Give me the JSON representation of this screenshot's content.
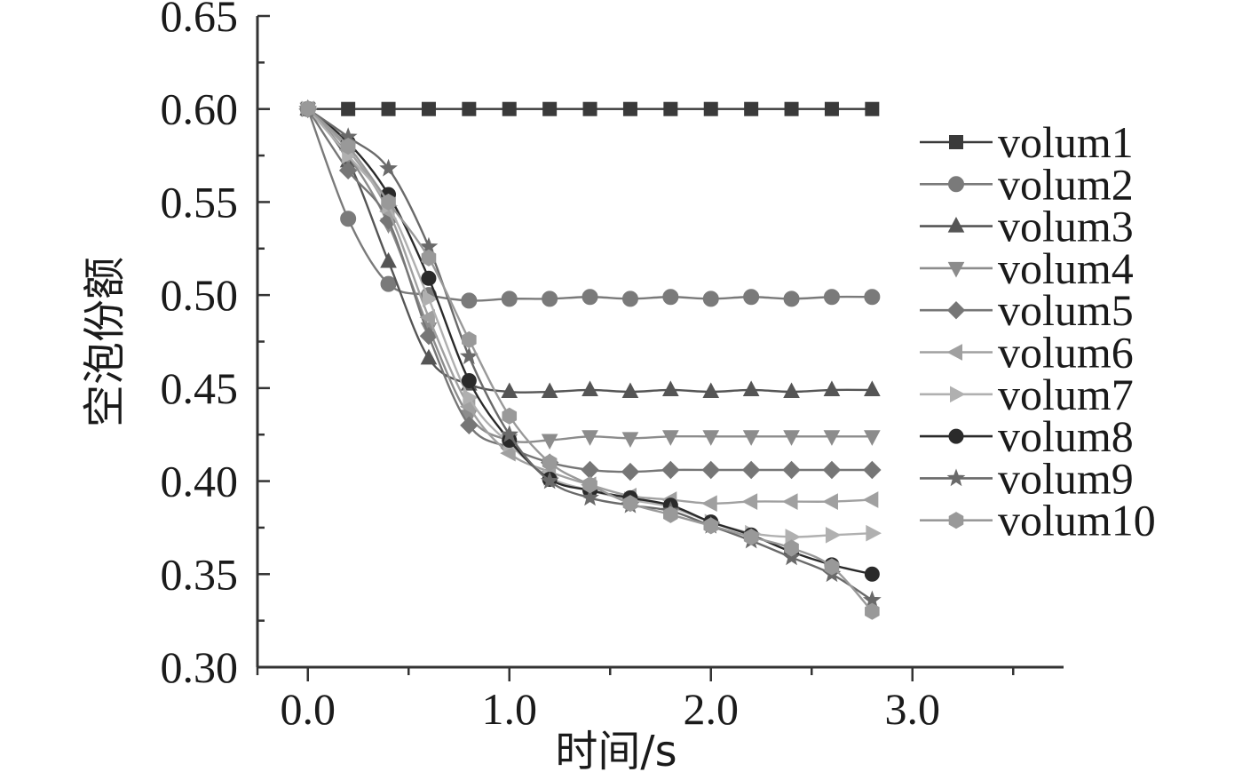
{
  "chart_data": {
    "type": "line",
    "title": "",
    "xlabel": "时间/s",
    "ylabel": "空泡份额",
    "xlim": [
      -0.25,
      3.75
    ],
    "ylim": [
      0.3,
      0.65
    ],
    "x_ticks": [
      0.0,
      1.0,
      2.0,
      3.0
    ],
    "x_tick_labels": [
      "0.0",
      "1.0",
      "2.0",
      "3.0"
    ],
    "y_ticks": [
      0.3,
      0.35,
      0.4,
      0.45,
      0.5,
      0.55,
      0.6,
      0.65
    ],
    "y_tick_labels": [
      "0.30",
      "0.35",
      "0.40",
      "0.45",
      "0.50",
      "0.55",
      "0.60",
      "0.65"
    ],
    "legend_position": "right",
    "x": [
      0.0,
      0.2,
      0.4,
      0.6,
      0.8,
      1.0,
      1.2,
      1.4,
      1.6,
      1.8,
      2.0,
      2.2,
      2.4,
      2.6,
      2.8
    ],
    "series": [
      {
        "name": "volum1",
        "marker": "square",
        "color": "#3a3a3a",
        "values": [
          0.6,
          0.6,
          0.6,
          0.6,
          0.6,
          0.6,
          0.6,
          0.6,
          0.6,
          0.6,
          0.6,
          0.6,
          0.6,
          0.6,
          0.6
        ]
      },
      {
        "name": "volum2",
        "marker": "circle",
        "color": "#7a7a7a",
        "values": [
          0.6,
          0.541,
          0.506,
          0.5,
          0.497,
          0.498,
          0.498,
          0.499,
          0.498,
          0.499,
          0.498,
          0.499,
          0.498,
          0.499,
          0.499
        ]
      },
      {
        "name": "volum3",
        "marker": "triangle-up",
        "color": "#555555",
        "values": [
          0.6,
          0.572,
          0.518,
          0.466,
          0.452,
          0.448,
          0.448,
          0.449,
          0.448,
          0.449,
          0.448,
          0.449,
          0.448,
          0.449,
          0.449
        ]
      },
      {
        "name": "volum4",
        "marker": "triangle-down",
        "color": "#8c8c8c",
        "values": [
          0.6,
          0.575,
          0.538,
          0.482,
          0.435,
          0.422,
          0.422,
          0.424,
          0.423,
          0.424,
          0.424,
          0.424,
          0.424,
          0.424,
          0.424
        ]
      },
      {
        "name": "volum5",
        "marker": "diamond",
        "color": "#767676",
        "values": [
          0.6,
          0.567,
          0.54,
          0.478,
          0.43,
          0.418,
          0.41,
          0.406,
          0.405,
          0.406,
          0.406,
          0.406,
          0.406,
          0.406,
          0.406
        ]
      },
      {
        "name": "volum6",
        "marker": "triangle-left",
        "color": "#a0a0a0",
        "values": [
          0.6,
          0.578,
          0.545,
          0.488,
          0.44,
          0.415,
          0.405,
          0.398,
          0.392,
          0.39,
          0.388,
          0.389,
          0.389,
          0.389,
          0.39
        ]
      },
      {
        "name": "volum7",
        "marker": "triangle-right",
        "color": "#b0b0b0",
        "values": [
          0.6,
          0.575,
          0.548,
          0.498,
          0.445,
          0.42,
          0.402,
          0.395,
          0.39,
          0.386,
          0.378,
          0.372,
          0.37,
          0.371,
          0.372
        ]
      },
      {
        "name": "volum8",
        "marker": "circle-filled",
        "color": "#2a2a2a",
        "values": [
          0.6,
          0.582,
          0.554,
          0.509,
          0.454,
          0.422,
          0.401,
          0.395,
          0.391,
          0.387,
          0.378,
          0.371,
          0.362,
          0.355,
          0.35
        ]
      },
      {
        "name": "volum9",
        "marker": "star",
        "color": "#6a6a6a",
        "values": [
          0.6,
          0.585,
          0.568,
          0.526,
          0.467,
          0.425,
          0.4,
          0.391,
          0.387,
          0.384,
          0.376,
          0.368,
          0.359,
          0.35,
          0.336
        ]
      },
      {
        "name": "volum10",
        "marker": "hexagon",
        "color": "#999999",
        "values": [
          0.6,
          0.58,
          0.55,
          0.52,
          0.476,
          0.435,
          0.41,
          0.398,
          0.388,
          0.382,
          0.376,
          0.37,
          0.364,
          0.354,
          0.33
        ]
      }
    ]
  }
}
